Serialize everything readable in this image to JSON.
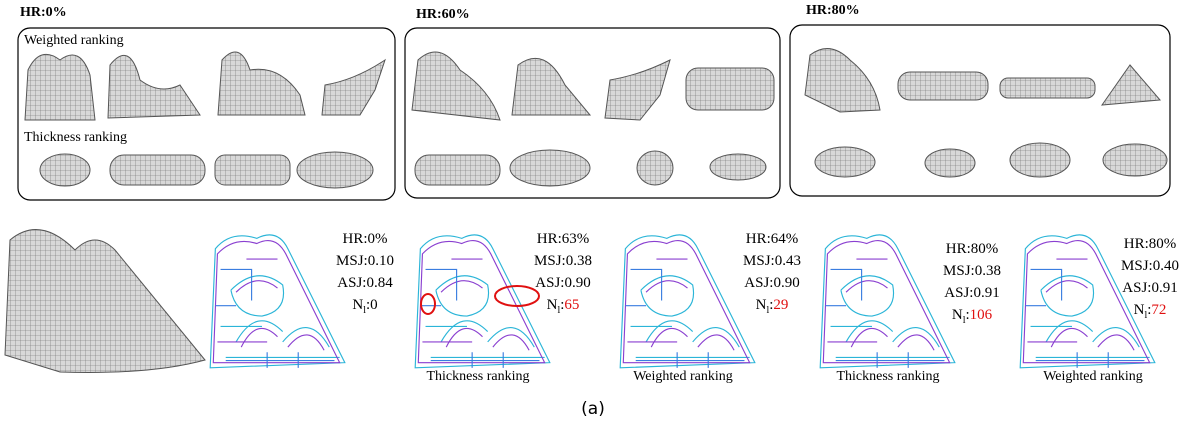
{
  "panels": [
    {
      "title": "HR:0%",
      "rows": [
        "Weighted ranking",
        "Thickness ranking"
      ]
    },
    {
      "title": "HR:60%"
    },
    {
      "title": "HR:80%"
    }
  ],
  "results": [
    {
      "hr": "HR:0%",
      "msj": "MSJ:0.10",
      "asj": "ASJ:0.84",
      "nl": {
        "symbol": "N",
        "subscript": "l",
        "separator": ":",
        "value": "0"
      }
    },
    {
      "hr": "HR:63%",
      "msj": "MSJ:0.38",
      "asj": "ASJ:0.90",
      "nl": {
        "symbol": "N",
        "subscript": "l",
        "separator": ":",
        "value": "65"
      },
      "caption": "Thickness ranking"
    },
    {
      "hr": "HR:64%",
      "msj": "MSJ:0.43",
      "asj": "ASJ:0.90",
      "nl": {
        "symbol": "N",
        "subscript": "l",
        "separator": ":",
        "value": "29"
      },
      "caption": "Weighted ranking"
    },
    {
      "hr": "HR:80%",
      "msj": "MSJ:0.38",
      "asj": "ASJ:0.91",
      "nl": {
        "symbol": "N",
        "subscript": "l",
        "separator": ":",
        "value": "106"
      },
      "caption": "Thickness ranking"
    },
    {
      "hr": "HR:80%",
      "msj": "MSJ:0.40",
      "asj": "ASJ:0.91",
      "nl": {
        "symbol": "N",
        "subscript": "l",
        "separator": ":",
        "value": "72"
      },
      "caption": "Weighted ranking"
    }
  ],
  "figure_label": "(a)"
}
